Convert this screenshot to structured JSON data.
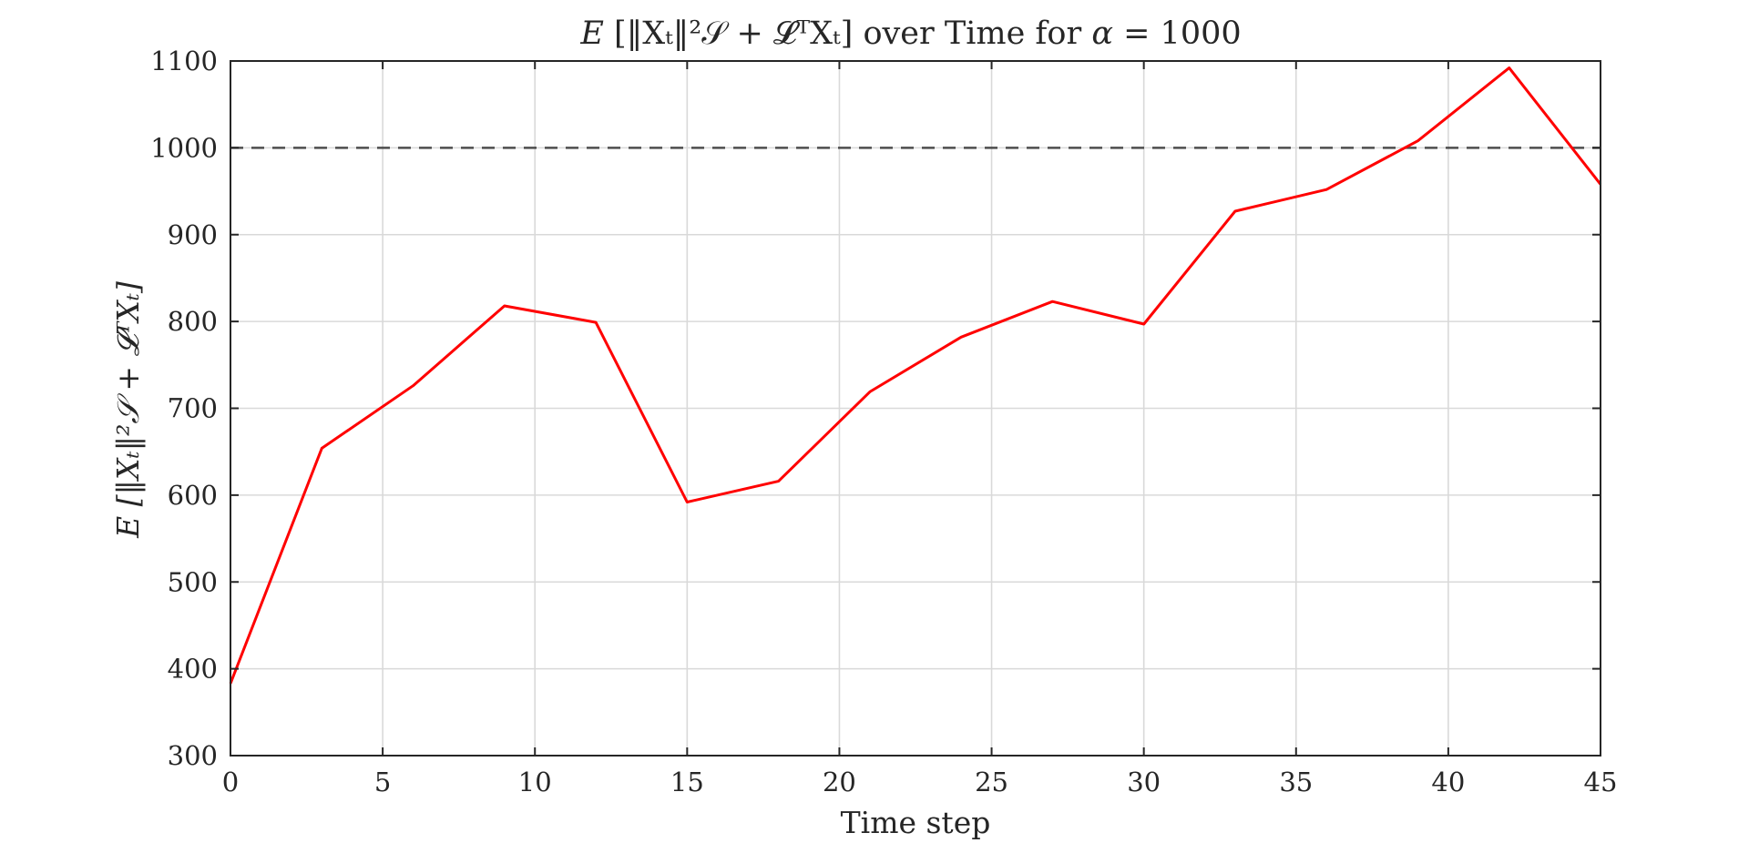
{
  "chart_data": {
    "type": "line",
    "title_parts": {
      "lead": "E",
      "expr": "[‖Xₜ‖²𝒮 + 𝓛ᵀXₜ]",
      "tail": "over Time for",
      "alpha": "α",
      "equals": "= 1000"
    },
    "xlabel": "Time step",
    "ylabel": "E [‖Xₜ‖²𝒮 + 𝓛ᵀXₜ]",
    "xlim": [
      0,
      45
    ],
    "ylim": [
      300,
      1100
    ],
    "xticks": [
      0,
      5,
      10,
      15,
      20,
      25,
      30,
      35,
      40,
      45
    ],
    "yticks": [
      300,
      400,
      500,
      600,
      700,
      800,
      900,
      1000,
      1100
    ],
    "grid": true,
    "series": [
      {
        "color": "#ff0000",
        "x": [
          0,
          3,
          6,
          9,
          12,
          15,
          18,
          21,
          24,
          27,
          30,
          33,
          36,
          39,
          42,
          45
        ],
        "y": [
          383,
          654,
          726,
          818,
          799,
          592,
          616,
          719,
          782,
          823,
          797,
          927,
          952,
          1008,
          1092,
          958
        ]
      }
    ],
    "reference_line": {
      "y": 1000,
      "color": "#4d4d4d",
      "style": "dashed"
    }
  }
}
